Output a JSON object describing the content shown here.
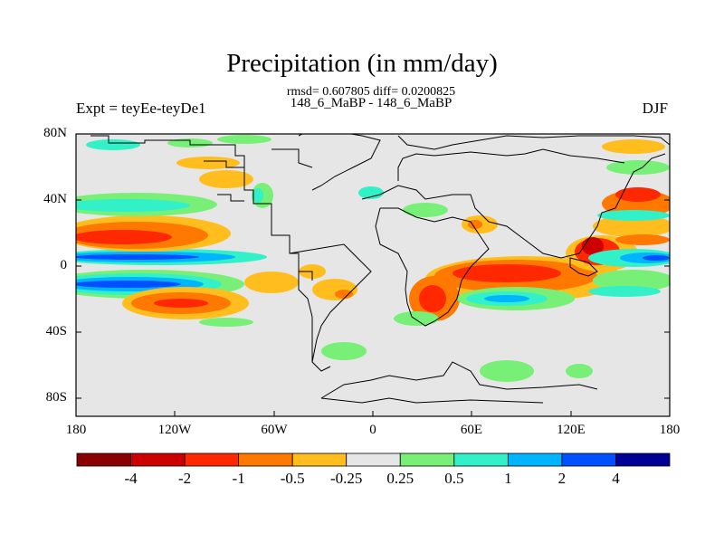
{
  "plot": {
    "title": "Precipitation (in mm/day)",
    "subtitle": "rmsd= 0.607805 diff= 0.0200825",
    "left_label": "Expt = teyEe-teyDe1",
    "center_label": "148_6_MaBP - 148_6_MaBP",
    "right_label": "DJF"
  },
  "axes": {
    "y_ticks": [
      "80N",
      "40N",
      "0",
      "40S",
      "80S"
    ],
    "x_ticks": [
      "180",
      "120W",
      "60W",
      "0",
      "60E",
      "120E",
      "180"
    ]
  },
  "colorbar": {
    "tick_labels": [
      "-4",
      "-2",
      "-1",
      "-0.5",
      "-0.25",
      "0.25",
      "0.5",
      "1",
      "2",
      "4"
    ],
    "colors": [
      "#8b0000",
      "#cc0000",
      "#ff2800",
      "#ff7800",
      "#ffbe1e",
      "#e6e6e6",
      "#78f078",
      "#32f0c8",
      "#00b4ff",
      "#0050ff",
      "#000096"
    ]
  },
  "colors": {
    "background_field": "#e6e6e6",
    "coastline": "#000000"
  }
}
